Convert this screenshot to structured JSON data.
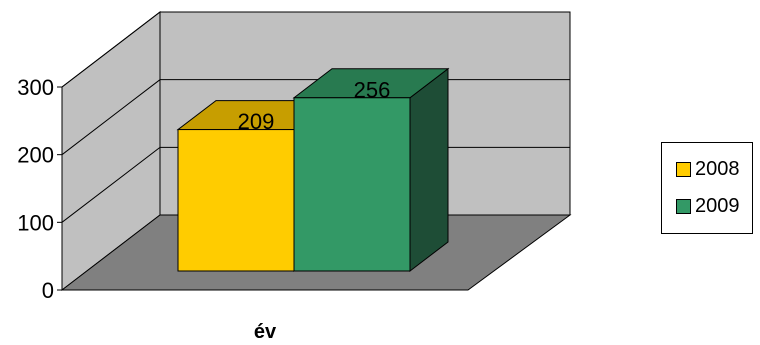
{
  "chart_data": {
    "type": "bar",
    "title": "",
    "xlabel": "év",
    "ylabel": "",
    "category": "év",
    "ylim": [
      0,
      300
    ],
    "yticks": [
      "0",
      "100",
      "200",
      "300"
    ],
    "legend_position": "right",
    "grid": true,
    "three_d": true,
    "series": [
      {
        "name": "2008",
        "value": 209,
        "label": "209",
        "color": "#ffcc00",
        "top_color": "#c79e00",
        "side_color": "#806600"
      },
      {
        "name": "2009",
        "value": 256,
        "label": "256",
        "color": "#339966",
        "top_color": "#287a50",
        "side_color": "#1e4d36"
      }
    ],
    "wall_color": "#c0c0c0",
    "floor_color": "#808080"
  }
}
